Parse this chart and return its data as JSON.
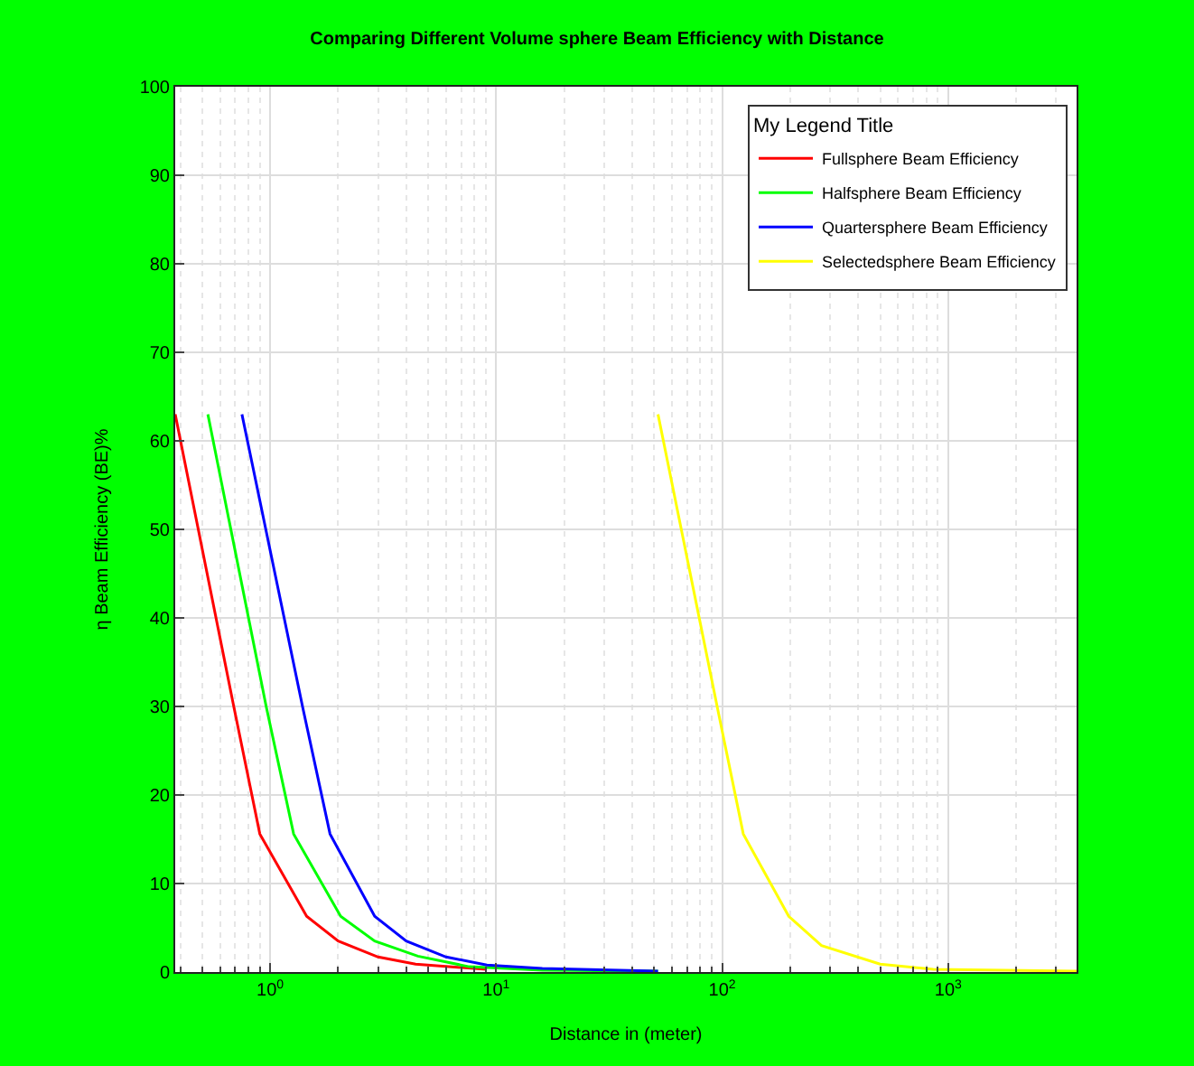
{
  "chart_data": {
    "type": "line",
    "title": "Comparing Different Volume sphere Beam Efficiency with Distance",
    "xlabel": "Distance in (meter)",
    "ylabel": "η Beam Efficiency (BE)%",
    "legend_title": "My Legend Title",
    "log": "x",
    "grid": true,
    "legend": "top right",
    "marker": "none",
    "line_style": "solid",
    "xlim": [
      0.38,
      3700
    ],
    "ylim": [
      0,
      100
    ],
    "xticks": [
      {
        "value": 1,
        "label": "10$^{0}$"
      },
      {
        "value": 10,
        "label": "10$^{1}$"
      },
      {
        "value": 100,
        "label": "10$^{2}$"
      },
      {
        "value": 1000,
        "label": "10$^{3}$"
      }
    ],
    "yticks": [
      0,
      10,
      20,
      30,
      40,
      50,
      60,
      70,
      80,
      90,
      100
    ],
    "series": [
      {
        "name": "Fullsphere Beam Efficiency",
        "color": "#ff0000",
        "x": [
          0.38,
          0.69,
          0.9,
          1.45,
          2.0,
          3.0,
          4.4,
          9.1
        ],
        "values": [
          63,
          30,
          15.6,
          6.3,
          3.5,
          1.7,
          0.9,
          0.3
        ]
      },
      {
        "name": "Halfsphere Beam Efficiency",
        "color": "#00ff00",
        "x": [
          0.53,
          0.96,
          1.27,
          2.05,
          2.9,
          4.5,
          7.6,
          16,
          52
        ],
        "values": [
          63,
          30,
          15.6,
          6.3,
          3.5,
          1.8,
          0.6,
          0.2,
          0.1
        ]
      },
      {
        "name": "Quartersphere Beam Efficiency",
        "color": "#0000ff",
        "x": [
          0.75,
          1.39,
          1.84,
          2.9,
          4.0,
          6.0,
          9.1,
          16,
          52
        ],
        "values": [
          63,
          30,
          15.6,
          6.3,
          3.5,
          1.7,
          0.8,
          0.4,
          0.1
        ]
      },
      {
        "name": "Selectedsphere Beam Efficiency",
        "color": "#ffff00",
        "x": [
          52,
          95,
          124,
          197,
          275,
          500,
          860,
          3700
        ],
        "values": [
          63,
          30,
          15.6,
          6.3,
          3.0,
          0.9,
          0.3,
          0.1
        ]
      }
    ]
  }
}
